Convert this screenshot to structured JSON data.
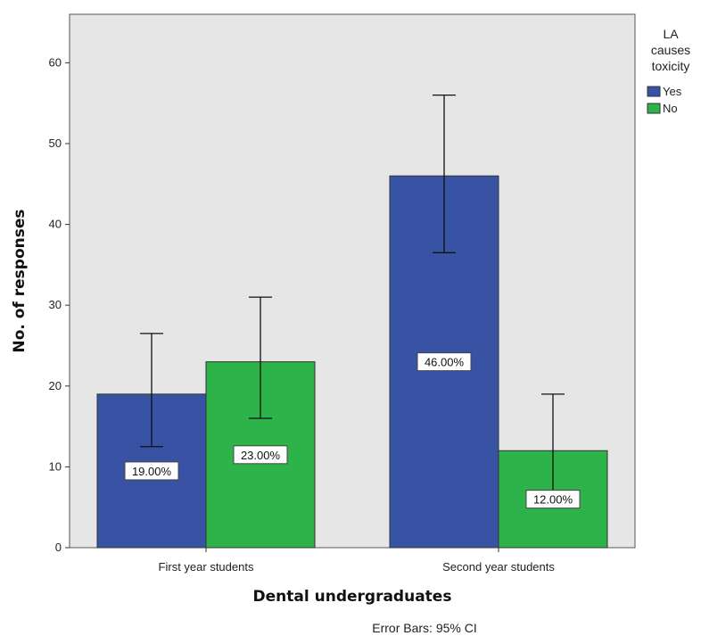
{
  "chart_data": {
    "type": "bar",
    "categories": [
      "First year students",
      "Second year students"
    ],
    "series": [
      {
        "name": "Yes",
        "color": "#3853a4",
        "values": [
          19,
          46
        ],
        "error_low": [
          12.5,
          36.5
        ],
        "error_high": [
          26.5,
          56
        ],
        "labels": [
          "19.00%",
          "46.00%"
        ]
      },
      {
        "name": "No",
        "color": "#2db34a",
        "values": [
          23,
          12
        ],
        "error_low": [
          16,
          7
        ],
        "error_high": [
          31,
          19
        ],
        "labels": [
          "23.00%",
          "12.00%"
        ]
      }
    ],
    "xlabel": "Dental undergraduates",
    "ylabel": "No. of responses",
    "ylim": [
      0,
      66
    ],
    "yticks": [
      0,
      10,
      20,
      30,
      40,
      50,
      60
    ],
    "plot_background": "#e6e6e6",
    "legend": {
      "title_lines": [
        "LA",
        "causes",
        "toxicity"
      ],
      "placement": "right"
    },
    "footnote": "Error Bars: 95% CI"
  }
}
